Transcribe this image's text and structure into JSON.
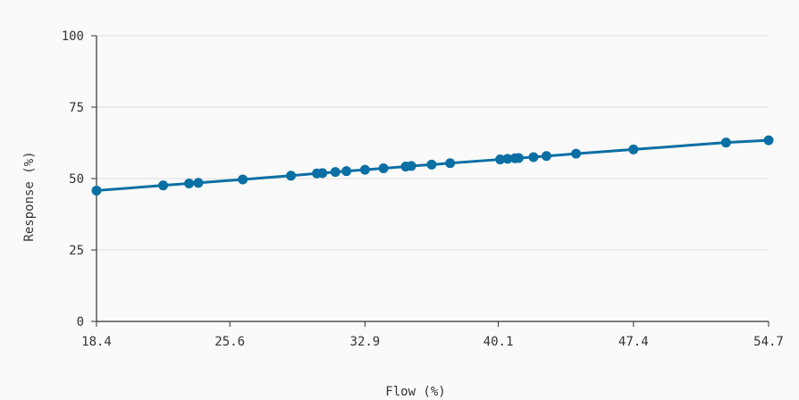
{
  "chart_data": {
    "type": "line",
    "xlabel": "Flow (%)",
    "ylabel": "Response (%)",
    "xlim": [
      18.4,
      54.7
    ],
    "ylim": [
      0,
      100
    ],
    "x_ticks": [
      "18.4",
      "25.6",
      "32.9",
      "40.1",
      "47.4",
      "54.7"
    ],
    "y_ticks": [
      "0",
      "25",
      "50",
      "75",
      "100"
    ],
    "grid": "horizontal",
    "series": [
      {
        "color": "#0b6fa4",
        "x": [
          18.4,
          22.0,
          23.4,
          23.9,
          26.3,
          28.9,
          30.3,
          30.6,
          31.3,
          31.9,
          32.9,
          33.9,
          35.1,
          35.4,
          36.5,
          37.5,
          40.2,
          40.6,
          41.0,
          41.2,
          42.0,
          42.7,
          44.3,
          47.4,
          52.4,
          54.7
        ],
        "y": [
          45.8,
          47.6,
          48.3,
          48.5,
          49.7,
          51.0,
          51.8,
          51.9,
          52.3,
          52.6,
          53.1,
          53.6,
          54.2,
          54.4,
          54.9,
          55.4,
          56.7,
          56.9,
          57.1,
          57.2,
          57.5,
          57.9,
          58.7,
          60.2,
          62.6,
          63.4
        ]
      }
    ]
  }
}
